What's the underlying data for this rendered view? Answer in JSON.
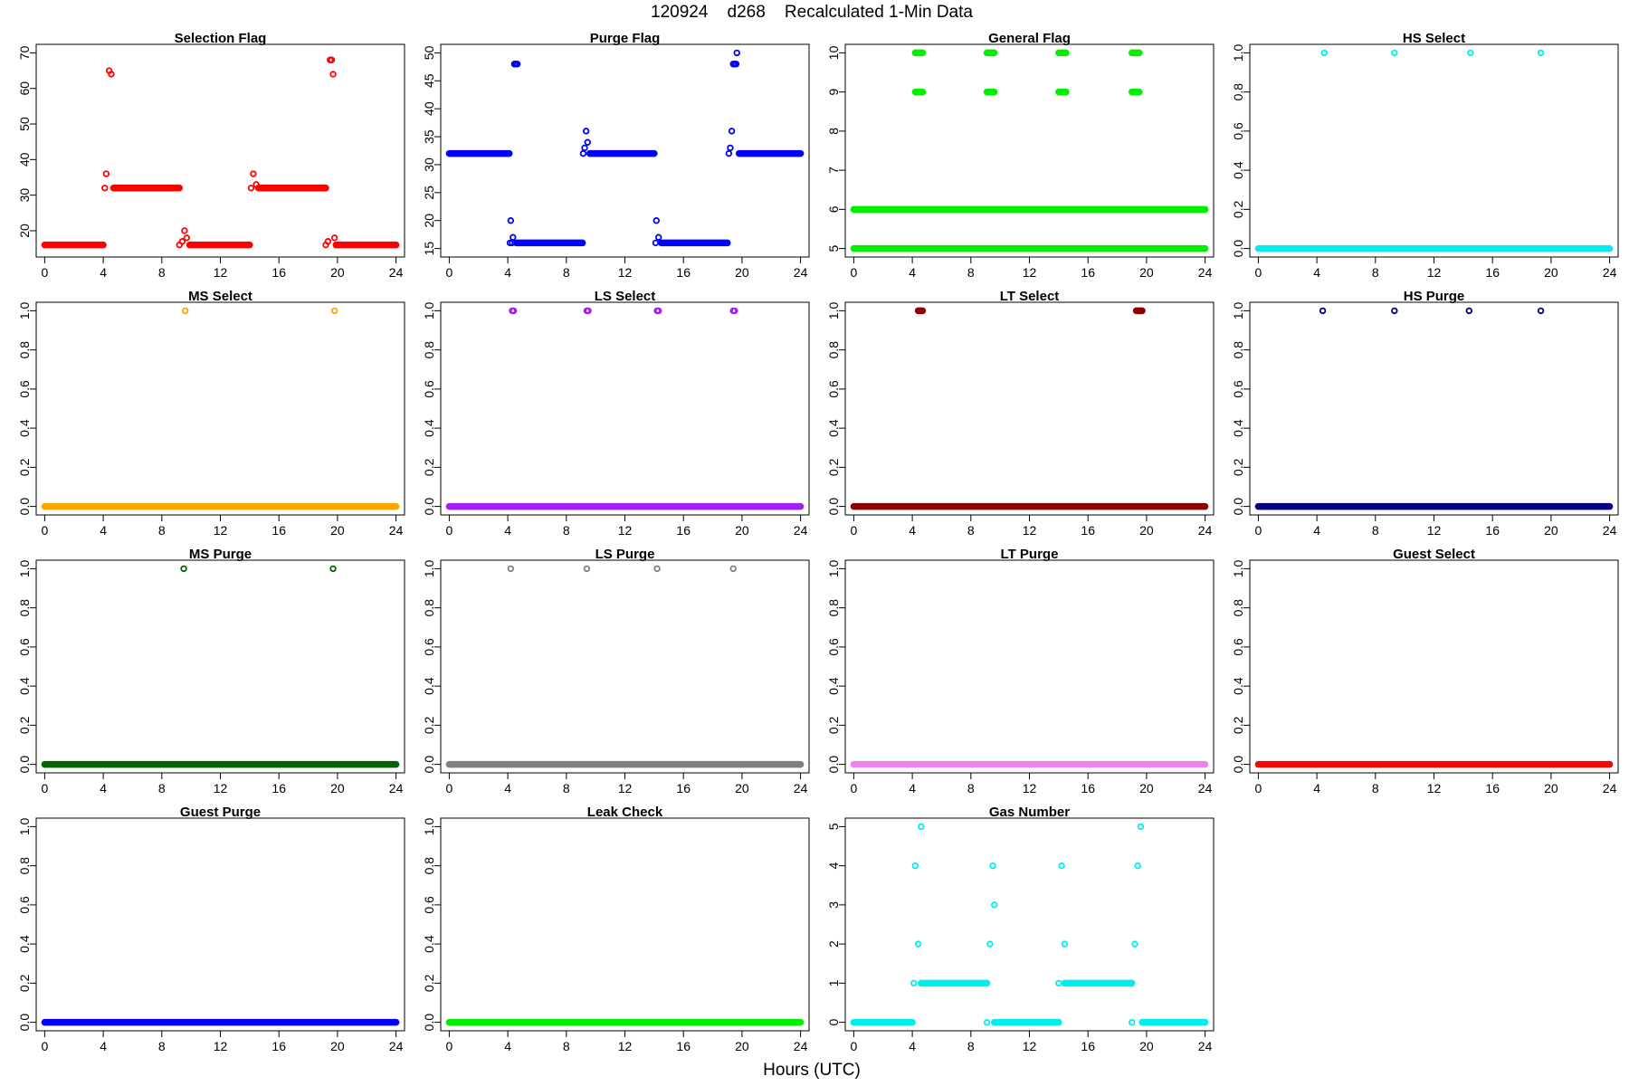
{
  "figure": {
    "title": "120924    d268    Recalculated 1-Min Data",
    "xlabel": "Hours (UTC)"
  },
  "chart_data": [
    {
      "type": "scatter",
      "title": "Selection Flag",
      "color": "#ff0000",
      "xlim": [
        0,
        24
      ],
      "ylim": [
        15,
        70
      ],
      "xticks": [
        0,
        4,
        8,
        12,
        16,
        20,
        24
      ],
      "yticks": [
        20,
        30,
        40,
        50,
        60,
        70
      ],
      "segments": [
        {
          "x0": 0.0,
          "x1": 4.0,
          "y": 16
        },
        {
          "x0": 4.7,
          "x1": 9.2,
          "y": 32
        },
        {
          "x0": 9.9,
          "x1": 14.0,
          "y": 16
        },
        {
          "x0": 14.6,
          "x1": 19.2,
          "y": 32
        },
        {
          "x0": 19.9,
          "x1": 24.0,
          "y": 16
        }
      ],
      "points": [
        [
          4.1,
          32
        ],
        [
          4.2,
          36
        ],
        [
          4.4,
          65
        ],
        [
          4.55,
          64
        ],
        [
          9.2,
          16
        ],
        [
          9.4,
          17
        ],
        [
          9.55,
          20
        ],
        [
          9.7,
          18
        ],
        [
          14.1,
          32
        ],
        [
          14.25,
          36
        ],
        [
          14.45,
          33
        ],
        [
          19.2,
          16
        ],
        [
          19.35,
          17
        ],
        [
          19.5,
          68
        ],
        [
          19.6,
          68
        ],
        [
          19.7,
          64
        ],
        [
          19.8,
          18
        ]
      ]
    },
    {
      "type": "scatter",
      "title": "Purge Flag",
      "color": "#0000ff",
      "xlim": [
        0,
        24
      ],
      "ylim": [
        15,
        50
      ],
      "xticks": [
        0,
        4,
        8,
        12,
        16,
        20,
        24
      ],
      "yticks": [
        15,
        20,
        25,
        30,
        35,
        40,
        45,
        50
      ],
      "segments": [
        {
          "x0": 0.0,
          "x1": 4.1,
          "y": 32
        },
        {
          "x0": 4.6,
          "x1": 9.1,
          "y": 16
        },
        {
          "x0": 9.6,
          "x1": 14.0,
          "y": 32
        },
        {
          "x0": 14.5,
          "x1": 19.0,
          "y": 16
        },
        {
          "x0": 19.8,
          "x1": 24.0,
          "y": 32
        }
      ],
      "points": [
        [
          4.15,
          16
        ],
        [
          4.2,
          20
        ],
        [
          4.3,
          16
        ],
        [
          4.35,
          17
        ],
        [
          4.45,
          48
        ],
        [
          4.55,
          48
        ],
        [
          4.65,
          48
        ],
        [
          9.15,
          32
        ],
        [
          9.25,
          33
        ],
        [
          9.35,
          36
        ],
        [
          9.45,
          34
        ],
        [
          14.1,
          16
        ],
        [
          14.15,
          20
        ],
        [
          14.3,
          17
        ],
        [
          19.1,
          32
        ],
        [
          19.2,
          33
        ],
        [
          19.3,
          36
        ],
        [
          19.4,
          48
        ],
        [
          19.5,
          48
        ],
        [
          19.6,
          48
        ],
        [
          19.65,
          50
        ]
      ]
    },
    {
      "type": "scatter",
      "title": "General Flag",
      "color": "#00ee00",
      "xlim": [
        0,
        24
      ],
      "ylim": [
        5,
        10
      ],
      "xticks": [
        0,
        4,
        8,
        12,
        16,
        20,
        24
      ],
      "yticks": [
        5,
        6,
        7,
        8,
        9,
        10
      ],
      "segments": [
        {
          "x0": 0.0,
          "x1": 24.0,
          "y": 5
        },
        {
          "x0": 0.0,
          "x1": 24.0,
          "y": 6
        },
        {
          "x0": 4.2,
          "x1": 4.7,
          "y": 9
        },
        {
          "x0": 4.2,
          "x1": 4.7,
          "y": 10
        },
        {
          "x0": 9.1,
          "x1": 9.6,
          "y": 9
        },
        {
          "x0": 9.1,
          "x1": 9.6,
          "y": 10
        },
        {
          "x0": 14.0,
          "x1": 14.5,
          "y": 9
        },
        {
          "x0": 14.0,
          "x1": 14.5,
          "y": 10
        },
        {
          "x0": 19.0,
          "x1": 19.5,
          "y": 9
        },
        {
          "x0": 19.0,
          "x1": 19.5,
          "y": 10
        }
      ],
      "points": []
    },
    {
      "type": "scatter",
      "title": "HS Select",
      "color": "#00eeee",
      "xlim": [
        0,
        24
      ],
      "ylim": [
        0,
        1
      ],
      "xticks": [
        0,
        4,
        8,
        12,
        16,
        20,
        24
      ],
      "yticks": [
        0.0,
        0.2,
        0.4,
        0.6,
        0.8,
        1.0
      ],
      "segments": [
        {
          "x0": 0.0,
          "x1": 24.0,
          "y": 0
        }
      ],
      "points": [
        [
          4.5,
          1
        ],
        [
          9.3,
          1
        ],
        [
          14.5,
          1
        ],
        [
          19.3,
          1
        ]
      ]
    },
    {
      "type": "scatter",
      "title": "MS Select",
      "color": "#ffa500",
      "xlim": [
        0,
        24
      ],
      "ylim": [
        0,
        1
      ],
      "xticks": [
        0,
        4,
        8,
        12,
        16,
        20,
        24
      ],
      "yticks": [
        0.0,
        0.2,
        0.4,
        0.6,
        0.8,
        1.0
      ],
      "segments": [
        {
          "x0": 0.0,
          "x1": 24.0,
          "y": 0
        }
      ],
      "points": [
        [
          9.6,
          1
        ],
        [
          19.8,
          1
        ]
      ]
    },
    {
      "type": "scatter",
      "title": "LS Select",
      "color": "#a020f0",
      "xlim": [
        0,
        24
      ],
      "ylim": [
        0,
        1
      ],
      "xticks": [
        0,
        4,
        8,
        12,
        16,
        20,
        24
      ],
      "yticks": [
        0.0,
        0.2,
        0.4,
        0.6,
        0.8,
        1.0
      ],
      "segments": [
        {
          "x0": 0.0,
          "x1": 24.0,
          "y": 0
        }
      ],
      "points": [
        [
          4.3,
          1
        ],
        [
          4.4,
          1
        ],
        [
          9.4,
          1
        ],
        [
          9.5,
          1
        ],
        [
          14.2,
          1
        ],
        [
          14.3,
          1
        ],
        [
          19.4,
          1
        ],
        [
          19.5,
          1
        ]
      ]
    },
    {
      "type": "scatter",
      "title": "LT Select",
      "color": "#8b0000",
      "xlim": [
        0,
        24
      ],
      "ylim": [
        0,
        1
      ],
      "xticks": [
        0,
        4,
        8,
        12,
        16,
        20,
        24
      ],
      "yticks": [
        0.0,
        0.2,
        0.4,
        0.6,
        0.8,
        1.0
      ],
      "segments": [
        {
          "x0": 0.0,
          "x1": 24.0,
          "y": 0
        },
        {
          "x0": 4.4,
          "x1": 4.7,
          "y": 1
        },
        {
          "x0": 19.3,
          "x1": 19.7,
          "y": 1
        }
      ],
      "points": []
    },
    {
      "type": "scatter",
      "title": "HS Purge",
      "color": "#000080",
      "xlim": [
        0,
        24
      ],
      "ylim": [
        0,
        1
      ],
      "xticks": [
        0,
        4,
        8,
        12,
        16,
        20,
        24
      ],
      "yticks": [
        0.0,
        0.2,
        0.4,
        0.6,
        0.8,
        1.0
      ],
      "segments": [
        {
          "x0": 0.0,
          "x1": 24.0,
          "y": 0
        }
      ],
      "points": [
        [
          4.4,
          1
        ],
        [
          9.3,
          1
        ],
        [
          14.4,
          1
        ],
        [
          19.3,
          1
        ]
      ]
    },
    {
      "type": "scatter",
      "title": "MS Purge",
      "color": "#006400",
      "xlim": [
        0,
        24
      ],
      "ylim": [
        0,
        1
      ],
      "xticks": [
        0,
        4,
        8,
        12,
        16,
        20,
        24
      ],
      "yticks": [
        0.0,
        0.2,
        0.4,
        0.6,
        0.8,
        1.0
      ],
      "segments": [
        {
          "x0": 0.0,
          "x1": 24.0,
          "y": 0
        }
      ],
      "points": [
        [
          9.5,
          1
        ],
        [
          19.7,
          1
        ]
      ]
    },
    {
      "type": "scatter",
      "title": "LS Purge",
      "color": "#808080",
      "xlim": [
        0,
        24
      ],
      "ylim": [
        0,
        1
      ],
      "xticks": [
        0,
        4,
        8,
        12,
        16,
        20,
        24
      ],
      "yticks": [
        0.0,
        0.2,
        0.4,
        0.6,
        0.8,
        1.0
      ],
      "segments": [
        {
          "x0": 0.0,
          "x1": 24.0,
          "y": 0
        }
      ],
      "points": [
        [
          4.2,
          1
        ],
        [
          9.4,
          1
        ],
        [
          14.2,
          1
        ],
        [
          19.4,
          1
        ]
      ]
    },
    {
      "type": "scatter",
      "title": "LT Purge",
      "color": "#ee82ee",
      "xlim": [
        0,
        24
      ],
      "ylim": [
        0,
        1
      ],
      "xticks": [
        0,
        4,
        8,
        12,
        16,
        20,
        24
      ],
      "yticks": [
        0.0,
        0.2,
        0.4,
        0.6,
        0.8,
        1.0
      ],
      "segments": [
        {
          "x0": 0.0,
          "x1": 24.0,
          "y": 0
        }
      ],
      "points": []
    },
    {
      "type": "scatter",
      "title": "Guest Select",
      "color": "#ff0000",
      "xlim": [
        0,
        24
      ],
      "ylim": [
        0,
        1
      ],
      "xticks": [
        0,
        4,
        8,
        12,
        16,
        20,
        24
      ],
      "yticks": [
        0.0,
        0.2,
        0.4,
        0.6,
        0.8,
        1.0
      ],
      "segments": [
        {
          "x0": 0.0,
          "x1": 24.0,
          "y": 0
        }
      ],
      "points": []
    },
    {
      "type": "scatter",
      "title": "Guest Purge",
      "color": "#0000ff",
      "xlim": [
        0,
        24
      ],
      "ylim": [
        0,
        1
      ],
      "xticks": [
        0,
        4,
        8,
        12,
        16,
        20,
        24
      ],
      "yticks": [
        0.0,
        0.2,
        0.4,
        0.6,
        0.8,
        1.0
      ],
      "segments": [
        {
          "x0": 0.0,
          "x1": 24.0,
          "y": 0
        }
      ],
      "points": []
    },
    {
      "type": "scatter",
      "title": "Leak Check",
      "color": "#00ee00",
      "xlim": [
        0,
        24
      ],
      "ylim": [
        0,
        1
      ],
      "xticks": [
        0,
        4,
        8,
        12,
        16,
        20,
        24
      ],
      "yticks": [
        0.0,
        0.2,
        0.4,
        0.6,
        0.8,
        1.0
      ],
      "segments": [
        {
          "x0": 0.0,
          "x1": 24.0,
          "y": 0
        }
      ],
      "points": []
    },
    {
      "type": "scatter",
      "title": "Gas Number",
      "color": "#00eeee",
      "xlim": [
        0,
        24
      ],
      "ylim": [
        0,
        5
      ],
      "xticks": [
        0,
        4,
        8,
        12,
        16,
        20,
        24
      ],
      "yticks": [
        0,
        1,
        2,
        3,
        4,
        5
      ],
      "segments": [
        {
          "x0": 0.0,
          "x1": 4.0,
          "y": 0
        },
        {
          "x0": 4.6,
          "x1": 9.1,
          "y": 1
        },
        {
          "x0": 9.6,
          "x1": 14.0,
          "y": 0
        },
        {
          "x0": 14.4,
          "x1": 19.0,
          "y": 1
        },
        {
          "x0": 19.7,
          "x1": 24.0,
          "y": 0
        }
      ],
      "points": [
        [
          4.1,
          1
        ],
        [
          4.2,
          4
        ],
        [
          4.4,
          2
        ],
        [
          4.6,
          5
        ],
        [
          9.1,
          0
        ],
        [
          9.3,
          2
        ],
        [
          9.5,
          4
        ],
        [
          9.6,
          3
        ],
        [
          14.0,
          1
        ],
        [
          14.2,
          4
        ],
        [
          14.4,
          2
        ],
        [
          19.0,
          0
        ],
        [
          19.2,
          2
        ],
        [
          19.4,
          4
        ],
        [
          19.6,
          5
        ]
      ]
    }
  ]
}
